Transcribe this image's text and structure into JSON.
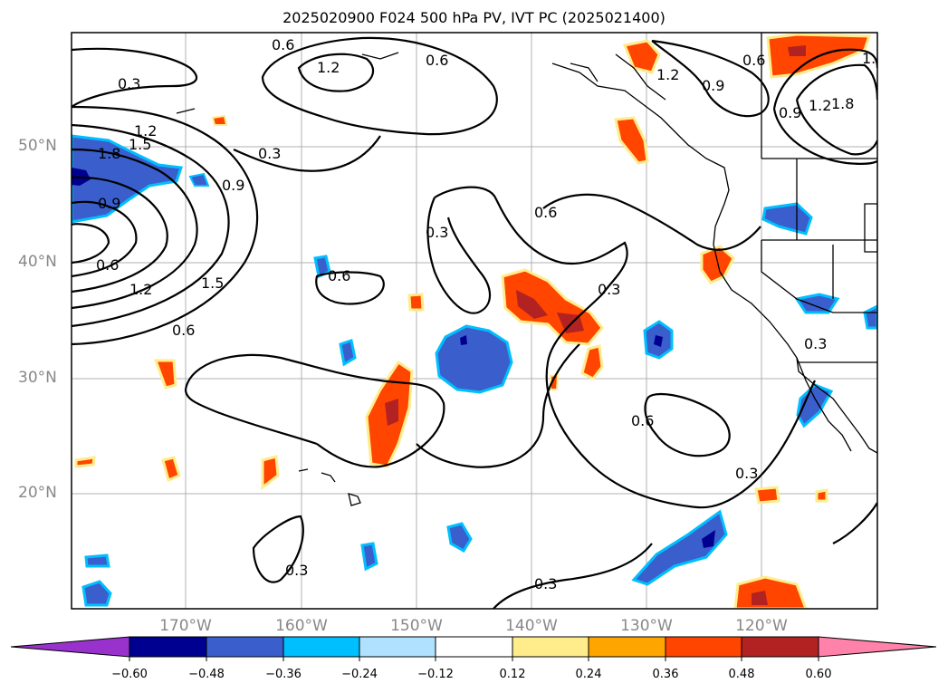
{
  "title": "2025020900 F024 500 hPa PV, IVT PC (2025021400)",
  "lat_labels": [
    "50°N",
    "40°N",
    "30°N",
    "20°N"
  ],
  "lon_labels": [
    "170°W",
    "160°W",
    "150°W",
    "140°W",
    "130°W",
    "120°W"
  ],
  "contour_labels": [
    "0.3",
    "0.6",
    "0.9",
    "1.2",
    "1.5",
    "1.8"
  ],
  "colorbar": {
    "ticks": [
      "−0.60",
      "−0.48",
      "−0.36",
      "−0.24",
      "−0.12",
      "0.12",
      "0.24",
      "0.36",
      "0.48",
      "0.60"
    ],
    "colors": [
      "#9932cc",
      "#000090",
      "#3a5fcd",
      "#00bfff",
      "#b0e2ff",
      "#ffffff",
      "#ffec8b",
      "#ffa500",
      "#ff4500",
      "#b22222",
      "#ff82ab"
    ]
  },
  "colors": {
    "land_line": "#000000",
    "grid": "#b0b0b0",
    "axis_label": "#888888"
  }
}
